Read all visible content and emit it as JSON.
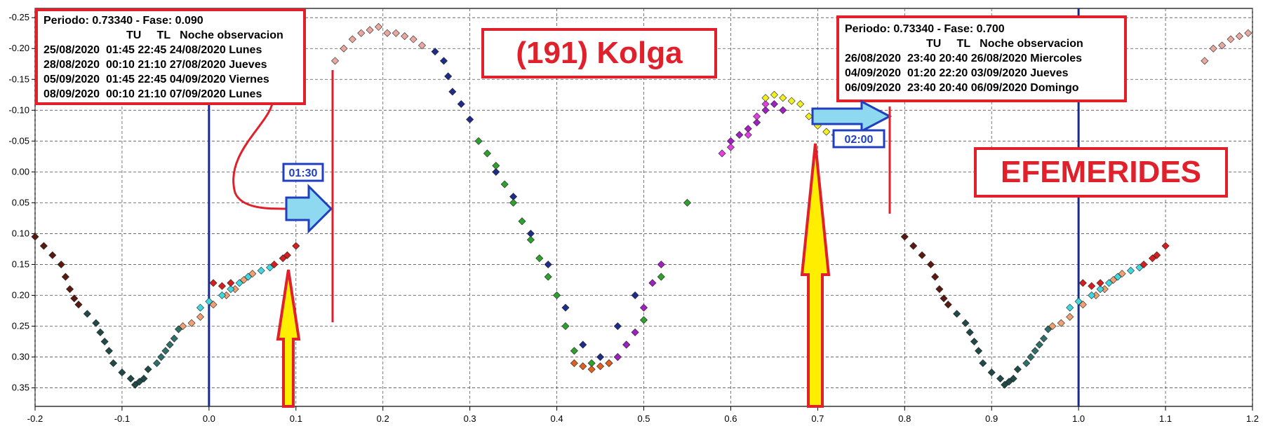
{
  "chart_data": {
    "type": "scatter",
    "title": "(191) Kolga",
    "subtitle": "EFEMERIDES",
    "xlabel": "",
    "ylabel": "",
    "xlim": [
      -0.2,
      1.2
    ],
    "ylim": [
      0.38,
      -0.265
    ],
    "y_inverted": true,
    "grid": true,
    "x_ticks": [
      -0.2,
      -0.1,
      0.0,
      0.1,
      0.2,
      0.3,
      0.4,
      0.5,
      0.6,
      0.7,
      0.8,
      0.9,
      1.0,
      1.1,
      1.2
    ],
    "x_tick_labels": [
      "-0.2",
      "-0.1",
      "0.0",
      "0.1",
      "0.2",
      "0.3",
      "0.4",
      "0.5",
      "0.6",
      "0.7",
      "0.8",
      "0.9",
      "1.0",
      "1.1",
      "1.2"
    ],
    "y_ticks": [
      -0.25,
      -0.2,
      -0.15,
      -0.1,
      -0.05,
      0.0,
      0.05,
      0.1,
      0.15,
      0.2,
      0.25,
      0.3,
      0.35
    ],
    "y_tick_labels": [
      "-0.25",
      "-0.20",
      "-0.15",
      "-0.10",
      "-0.05",
      "0.00",
      "0.05",
      "0.10",
      "0.15",
      "0.20",
      "0.25",
      "0.30",
      "0.35"
    ],
    "vertical_lines": [
      0.0,
      1.0
    ],
    "series": [
      {
        "color": "#5a1a10",
        "points": [
          [
            -0.2,
            0.105
          ],
          [
            -0.19,
            0.12
          ],
          [
            -0.18,
            0.135
          ],
          [
            -0.17,
            0.15
          ],
          [
            -0.165,
            0.17
          ],
          [
            -0.16,
            0.19
          ],
          [
            -0.155,
            0.205
          ],
          [
            -0.15,
            0.215
          ]
        ]
      },
      {
        "color": "#1f4a48",
        "points": [
          [
            -0.14,
            0.23
          ],
          [
            -0.13,
            0.245
          ],
          [
            -0.125,
            0.26
          ],
          [
            -0.12,
            0.275
          ],
          [
            -0.115,
            0.29
          ],
          [
            -0.11,
            0.31
          ],
          [
            -0.1,
            0.325
          ],
          [
            -0.09,
            0.335
          ],
          [
            -0.085,
            0.345
          ],
          [
            -0.08,
            0.34
          ],
          [
            -0.075,
            0.335
          ],
          [
            -0.07,
            0.32
          ]
        ]
      },
      {
        "color": "#2f6f6a",
        "points": [
          [
            -0.06,
            0.31
          ],
          [
            -0.055,
            0.3
          ],
          [
            -0.05,
            0.29
          ],
          [
            -0.045,
            0.28
          ],
          [
            -0.04,
            0.27
          ],
          [
            -0.035,
            0.255
          ]
        ]
      },
      {
        "color": "#f0a070",
        "points": [
          [
            -0.03,
            0.25
          ],
          [
            -0.02,
            0.245
          ],
          [
            -0.01,
            0.235
          ],
          [
            0.005,
            0.215
          ],
          [
            0.02,
            0.2
          ],
          [
            0.03,
            0.19
          ],
          [
            0.04,
            0.175
          ],
          [
            0.05,
            0.165
          ]
        ]
      },
      {
        "color": "#40d8e0",
        "points": [
          [
            -0.01,
            0.22
          ],
          [
            0.0,
            0.21
          ],
          [
            0.015,
            0.2
          ],
          [
            0.025,
            0.19
          ],
          [
            0.035,
            0.18
          ],
          [
            0.045,
            0.17
          ],
          [
            0.06,
            0.16
          ],
          [
            0.07,
            0.155
          ]
        ]
      },
      {
        "color": "#d42020",
        "points": [
          [
            0.005,
            0.18
          ],
          [
            0.015,
            0.185
          ],
          [
            0.025,
            0.18
          ],
          [
            0.075,
            0.15
          ],
          [
            0.085,
            0.14
          ],
          [
            0.09,
            0.135
          ],
          [
            0.1,
            0.12
          ]
        ]
      },
      {
        "color": "#e8a8a0",
        "points": [
          [
            0.145,
            -0.18
          ],
          [
            0.155,
            -0.2
          ],
          [
            0.165,
            -0.215
          ],
          [
            0.175,
            -0.225
          ],
          [
            0.185,
            -0.23
          ],
          [
            0.195,
            -0.235
          ],
          [
            0.205,
            -0.225
          ],
          [
            0.215,
            -0.225
          ],
          [
            0.225,
            -0.22
          ],
          [
            0.235,
            -0.215
          ],
          [
            0.245,
            -0.205
          ]
        ]
      },
      {
        "color": "#202c8a",
        "points": [
          [
            0.26,
            -0.195
          ],
          [
            0.27,
            -0.18
          ],
          [
            0.275,
            -0.155
          ],
          [
            0.28,
            -0.13
          ],
          [
            0.29,
            -0.11
          ],
          [
            0.3,
            -0.085
          ],
          [
            0.33,
            0.0
          ],
          [
            0.35,
            0.04
          ],
          [
            0.37,
            0.1
          ],
          [
            0.39,
            0.15
          ],
          [
            0.41,
            0.22
          ],
          [
            0.43,
            0.28
          ],
          [
            0.45,
            0.3
          ],
          [
            0.47,
            0.25
          ],
          [
            0.49,
            0.2
          ]
        ]
      },
      {
        "color": "#2ea02e",
        "points": [
          [
            0.31,
            -0.05
          ],
          [
            0.32,
            -0.03
          ],
          [
            0.33,
            -0.01
          ],
          [
            0.34,
            0.02
          ],
          [
            0.35,
            0.05
          ],
          [
            0.36,
            0.08
          ],
          [
            0.37,
            0.11
          ],
          [
            0.38,
            0.14
          ],
          [
            0.39,
            0.17
          ],
          [
            0.4,
            0.2
          ],
          [
            0.41,
            0.25
          ],
          [
            0.42,
            0.29
          ],
          [
            0.44,
            0.31
          ],
          [
            0.46,
            0.31
          ],
          [
            0.48,
            0.28
          ],
          [
            0.5,
            0.24
          ],
          [
            0.52,
            0.17
          ],
          [
            0.55,
            0.05
          ]
        ]
      },
      {
        "color": "#e06020",
        "points": [
          [
            0.42,
            0.31
          ],
          [
            0.43,
            0.315
          ],
          [
            0.44,
            0.32
          ],
          [
            0.45,
            0.315
          ],
          [
            0.46,
            0.31
          ],
          [
            0.47,
            0.3
          ]
        ]
      },
      {
        "color": "#a020c0",
        "points": [
          [
            0.47,
            0.3
          ],
          [
            0.48,
            0.28
          ],
          [
            0.49,
            0.26
          ],
          [
            0.5,
            0.22
          ],
          [
            0.51,
            0.18
          ],
          [
            0.52,
            0.15
          ],
          [
            0.6,
            -0.05
          ],
          [
            0.61,
            -0.06
          ],
          [
            0.62,
            -0.07
          ],
          [
            0.63,
            -0.08
          ],
          [
            0.64,
            -0.1
          ],
          [
            0.65,
            -0.11
          ],
          [
            0.66,
            -0.1
          ]
        ]
      },
      {
        "color": "#e040e0",
        "points": [
          [
            0.59,
            -0.03
          ],
          [
            0.6,
            -0.04
          ],
          [
            0.62,
            -0.06
          ],
          [
            0.63,
            -0.09
          ],
          [
            0.64,
            -0.11
          ]
        ]
      },
      {
        "color": "#f0f020",
        "points": [
          [
            0.64,
            -0.12
          ],
          [
            0.65,
            -0.125
          ],
          [
            0.66,
            -0.12
          ],
          [
            0.67,
            -0.115
          ],
          [
            0.68,
            -0.11
          ],
          [
            0.69,
            -0.09
          ],
          [
            0.7,
            -0.075
          ],
          [
            0.71,
            -0.065
          ],
          [
            0.72,
            -0.06
          ]
        ]
      },
      {
        "color": "#e8a8a0",
        "points": [
          [
            1.145,
            -0.18
          ],
          [
            1.155,
            -0.2
          ],
          [
            1.165,
            -0.205
          ],
          [
            1.175,
            -0.215
          ],
          [
            1.185,
            -0.22
          ],
          [
            1.195,
            -0.225
          ]
        ]
      },
      {
        "color": "#5a1a10",
        "points": [
          [
            0.8,
            0.105
          ],
          [
            0.81,
            0.12
          ],
          [
            0.82,
            0.135
          ],
          [
            0.83,
            0.15
          ],
          [
            0.835,
            0.17
          ],
          [
            0.84,
            0.19
          ],
          [
            0.845,
            0.205
          ],
          [
            0.85,
            0.215
          ]
        ]
      },
      {
        "color": "#1f4a48",
        "points": [
          [
            0.86,
            0.23
          ],
          [
            0.87,
            0.245
          ],
          [
            0.875,
            0.26
          ],
          [
            0.88,
            0.275
          ],
          [
            0.885,
            0.29
          ],
          [
            0.89,
            0.31
          ],
          [
            0.9,
            0.325
          ],
          [
            0.91,
            0.335
          ],
          [
            0.915,
            0.345
          ],
          [
            0.92,
            0.34
          ],
          [
            0.925,
            0.335
          ],
          [
            0.93,
            0.32
          ]
        ]
      },
      {
        "color": "#2f6f6a",
        "points": [
          [
            0.94,
            0.31
          ],
          [
            0.945,
            0.3
          ],
          [
            0.95,
            0.29
          ],
          [
            0.955,
            0.28
          ],
          [
            0.96,
            0.27
          ],
          [
            0.965,
            0.255
          ]
        ]
      },
      {
        "color": "#f0a070",
        "points": [
          [
            0.97,
            0.25
          ],
          [
            0.98,
            0.245
          ],
          [
            0.99,
            0.235
          ],
          [
            1.005,
            0.215
          ],
          [
            1.02,
            0.2
          ],
          [
            1.03,
            0.19
          ],
          [
            1.04,
            0.175
          ],
          [
            1.05,
            0.165
          ]
        ]
      },
      {
        "color": "#40d8e0",
        "points": [
          [
            0.99,
            0.22
          ],
          [
            1.0,
            0.21
          ],
          [
            1.015,
            0.2
          ],
          [
            1.025,
            0.19
          ],
          [
            1.035,
            0.18
          ],
          [
            1.045,
            0.17
          ],
          [
            1.06,
            0.16
          ],
          [
            1.07,
            0.155
          ]
        ]
      },
      {
        "color": "#d42020",
        "points": [
          [
            1.005,
            0.18
          ],
          [
            1.015,
            0.185
          ],
          [
            1.025,
            0.18
          ],
          [
            1.075,
            0.15
          ],
          [
            1.085,
            0.14
          ],
          [
            1.09,
            0.135
          ],
          [
            1.1,
            0.12
          ]
        ]
      }
    ]
  },
  "info_left": {
    "line1": "Periodo: 0.73340 - Fase: 0.090",
    "line2": "TU     TL   Noche observacion",
    "line3": "25/08/2020  01:45 22:45 24/08/2020 Lunes",
    "line4": "28/08/2020  00:10 21:10 27/08/2020 Jueves",
    "line5": "05/09/2020  01:45 22:45 04/09/2020 Viernes",
    "line6": "08/09/2020  00:10 21:10 07/09/2020 Lunes"
  },
  "info_right": {
    "line1": "Periodo: 0.73340 - Fase: 0.700",
    "line2": "TU     TL   Noche observacion",
    "line3": "26/08/2020  23:40 20:40 26/08/2020 Miercoles",
    "line4": "04/09/2020  01:20 22:20 03/09/2020 Jueves",
    "line5": "06/09/2020  23:40 20:40 06/09/2020 Domingo"
  },
  "title_box": {
    "text": "(191) Kolga"
  },
  "subtitle_box": {
    "text": "EFEMERIDES"
  },
  "markers": {
    "left_time": "01:30",
    "right_time": "02:00"
  },
  "colors": {
    "accent_red": "#e0202a",
    "arrow_blue": "#8ed8f0",
    "arrow_yellow": "#ffee00",
    "axis_navy": "#1a2a8a"
  }
}
